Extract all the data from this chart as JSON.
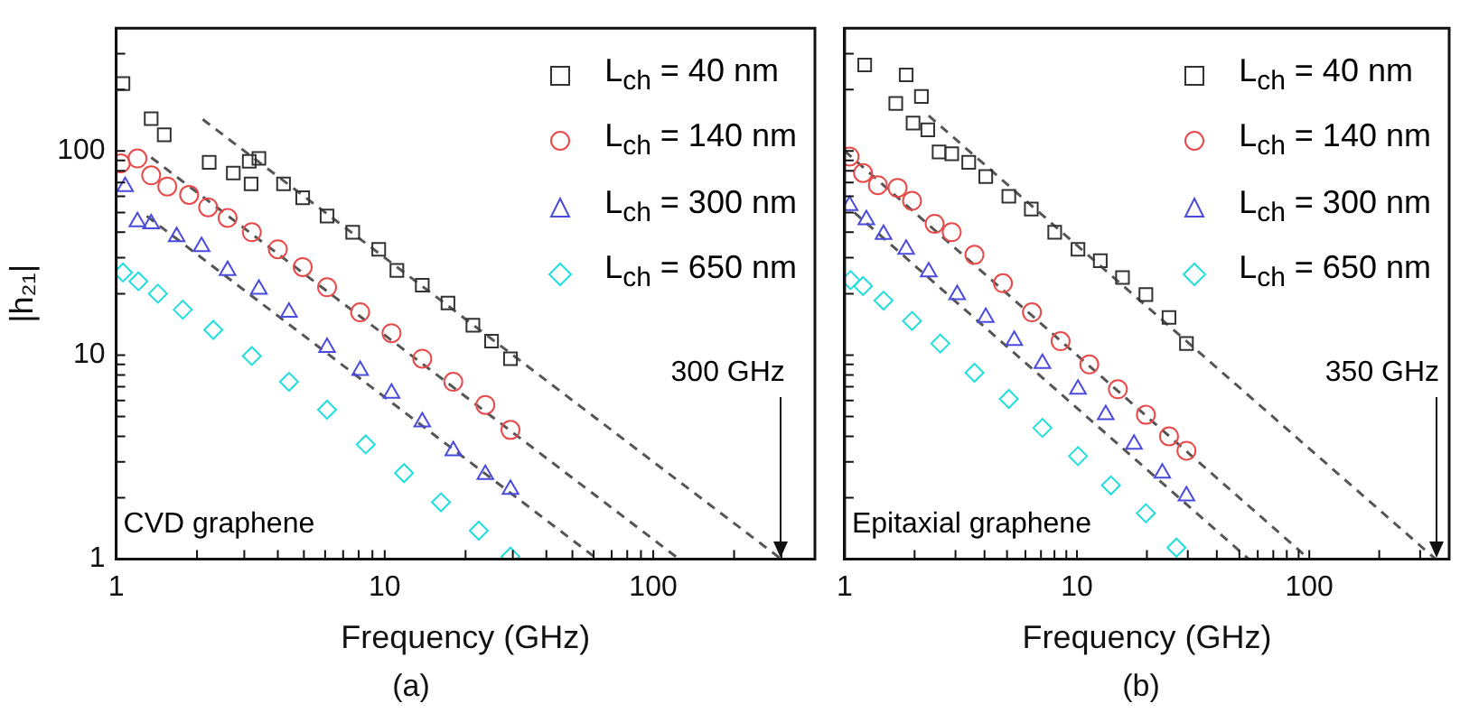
{
  "chart_data": [
    {
      "type": "scatter",
      "title": "(a)",
      "xlabel": "Frequency (GHz)",
      "ylabel": "|h₂₁|",
      "log": "xy",
      "legend": "top right",
      "grid": false,
      "xlim": [
        1,
        400
      ],
      "ylim": [
        1,
        400
      ],
      "xticks": [
        1,
        {
          "value": 2,
          "label": null
        },
        {
          "value": 3,
          "label": null
        },
        {
          "value": 4,
          "label": null
        },
        {
          "value": 5,
          "label": null
        },
        {
          "value": 6,
          "label": null
        },
        {
          "value": 7,
          "label": null
        },
        {
          "value": 8,
          "label": null
        },
        {
          "value": 9,
          "label": null
        },
        10,
        {
          "value": 20,
          "label": null
        },
        {
          "value": 30,
          "label": null
        },
        {
          "value": 40,
          "label": null
        },
        {
          "value": 50,
          "label": null
        },
        {
          "value": 60,
          "label": null
        },
        {
          "value": 70,
          "label": null
        },
        {
          "value": 80,
          "label": null
        },
        {
          "value": 90,
          "label": null
        },
        100,
        {
          "value": 200,
          "label": null
        },
        {
          "value": 300,
          "label": null
        }
      ],
      "yticks": [
        1,
        {
          "value": 2,
          "label": null
        },
        {
          "value": 3,
          "label": null
        },
        {
          "value": 4,
          "label": null
        },
        {
          "value": 5,
          "label": null
        },
        {
          "value": 6,
          "label": null
        },
        {
          "value": 7,
          "label": null
        },
        {
          "value": 8,
          "label": null
        },
        {
          "value": 9,
          "label": null
        },
        10,
        {
          "value": 20,
          "label": null
        },
        {
          "value": 30,
          "label": null
        },
        {
          "value": 40,
          "label": null
        },
        {
          "value": 50,
          "label": null
        },
        {
          "value": 60,
          "label": null
        },
        {
          "value": 70,
          "label": null
        },
        {
          "value": 80,
          "label": null
        },
        {
          "value": 90,
          "label": null
        },
        100,
        {
          "value": 200,
          "label": null
        },
        {
          "value": 300,
          "label": null
        }
      ],
      "series": [
        {
          "name": "L$_{ch}$ = 40 nm",
          "color": "#333333",
          "marker": "square",
          "x": [
            1.06,
            1.35,
            1.51,
            2.22,
            2.73,
            3.13,
            3.4,
            3.18,
            4.2,
            4.95,
            6.1,
            7.6,
            9.5,
            11.1,
            13.8,
            17.2,
            21.3,
            25,
            29.4
          ],
          "values": [
            214,
            144,
            120,
            88,
            78,
            89,
            92,
            69,
            69,
            59,
            48,
            40,
            33,
            26,
            22,
            18,
            14,
            11.7,
            9.6
          ]
        },
        {
          "name": "L$_{ch}$ = 140 nm",
          "color": "#e84a4a",
          "marker": "circle",
          "x": [
            1.04,
            1.2,
            1.35,
            1.55,
            1.87,
            2.2,
            2.6,
            3.2,
            4.0,
            4.95,
            6.1,
            8.1,
            10.6,
            13.8,
            18,
            23.7,
            29.4
          ],
          "values": [
            87,
            92,
            76,
            67,
            61,
            53,
            47,
            40,
            33,
            27,
            21.5,
            16.2,
            12.8,
            9.6,
            7.4,
            5.7,
            4.3
          ]
        },
        {
          "name": "L$_{ch}$ = 300 nm",
          "color": "#4a4adf",
          "marker": "triangle",
          "x": [
            1.08,
            1.2,
            1.35,
            1.68,
            2.08,
            2.6,
            3.4,
            4.4,
            6.1,
            8.1,
            10.6,
            13.8,
            18,
            23.7,
            29.4
          ],
          "values": [
            67,
            45,
            44,
            38,
            34,
            26,
            21,
            16.2,
            10.9,
            8.4,
            6.5,
            4.7,
            3.4,
            2.6,
            2.2
          ]
        },
        {
          "name": "L$_{ch}$ = 650 nm",
          "color": "#22dddd",
          "marker": "diamond",
          "x": [
            1.06,
            1.21,
            1.43,
            1.77,
            2.3,
            3.2,
            4.4,
            6.1,
            8.5,
            11.8,
            16.2,
            22.4,
            29.4
          ],
          "values": [
            25.4,
            23,
            20,
            16.7,
            13.3,
            9.9,
            7.4,
            5.4,
            3.65,
            2.64,
            1.9,
            1.38,
            1.03
          ]
        },
        {
          "type": "line",
          "color": "#555555",
          "marker": "none",
          "line_style": "dashed",
          "x": [
            2.1,
            300
          ],
          "values": [
            143,
            1
          ]
        },
        {
          "type": "line",
          "color": "#555555",
          "marker": "none",
          "line_style": "dashed",
          "x": [
            1.35,
            125
          ],
          "values": [
            93,
            1
          ]
        },
        {
          "type": "line",
          "color": "#555555",
          "marker": "none",
          "line_style": "dashed",
          "x": [
            1.3,
            62
          ],
          "values": [
            48,
            1
          ]
        }
      ],
      "annotations": [
        "CVD graphene",
        {
          "text": "300 GHz",
          "x": 300,
          "y": 1
        }
      ]
    },
    {
      "type": "scatter",
      "title": "(b)",
      "xlabel": "Frequency (GHz)",
      "log": "xy",
      "legend": "top right",
      "grid": false,
      "tick_labels": "x",
      "xlim": [
        1,
        400
      ],
      "ylim": [
        1,
        400
      ],
      "xticks": [
        1,
        {
          "value": 2,
          "label": null
        },
        {
          "value": 3,
          "label": null
        },
        {
          "value": 4,
          "label": null
        },
        {
          "value": 5,
          "label": null
        },
        {
          "value": 6,
          "label": null
        },
        {
          "value": 7,
          "label": null
        },
        {
          "value": 8,
          "label": null
        },
        {
          "value": 9,
          "label": null
        },
        10,
        {
          "value": 20,
          "label": null
        },
        {
          "value": 30,
          "label": null
        },
        {
          "value": 40,
          "label": null
        },
        {
          "value": 50,
          "label": null
        },
        {
          "value": 60,
          "label": null
        },
        {
          "value": 70,
          "label": null
        },
        {
          "value": 80,
          "label": null
        },
        {
          "value": 90,
          "label": null
        },
        100,
        {
          "value": 200,
          "label": null
        },
        {
          "value": 300,
          "label": null
        }
      ],
      "yticks": [
        {
          "value": 1,
          "label": null
        },
        {
          "value": 2,
          "label": null
        },
        {
          "value": 3,
          "label": null
        },
        {
          "value": 4,
          "label": null
        },
        {
          "value": 5,
          "label": null
        },
        {
          "value": 6,
          "label": null
        },
        {
          "value": 7,
          "label": null
        },
        {
          "value": 8,
          "label": null
        },
        {
          "value": 9,
          "label": null
        },
        {
          "value": 10,
          "label": null
        },
        {
          "value": 20,
          "label": null
        },
        {
          "value": 30,
          "label": null
        },
        {
          "value": 40,
          "label": null
        },
        {
          "value": 50,
          "label": null
        },
        {
          "value": 60,
          "label": null
        },
        {
          "value": 70,
          "label": null
        },
        {
          "value": 80,
          "label": null
        },
        {
          "value": 90,
          "label": null
        },
        {
          "value": 100,
          "label": null
        },
        {
          "value": 200,
          "label": null
        },
        {
          "value": 300,
          "label": null
        }
      ],
      "series": [
        {
          "name": "L$_{ch}$ = 40 nm",
          "color": "#333333",
          "marker": "square",
          "x": [
            1.22,
            1.84,
            1.66,
            2.14,
            1.97,
            2.28,
            2.55,
            2.89,
            3.42,
            4.05,
            5.09,
            6.36,
            8.02,
            10.1,
            12.6,
            15.7,
            19.8,
            24.9,
            29.6
          ],
          "values": [
            264,
            236,
            171,
            185,
            137,
            127,
            99,
            97,
            88,
            75,
            60,
            52,
            40,
            33,
            29,
            24,
            19.8,
            15.3,
            11.4
          ]
        },
        {
          "name": "L$_{ch}$ = 140 nm",
          "color": "#e84a4a",
          "marker": "circle",
          "x": [
            1.05,
            1.2,
            1.39,
            1.69,
            1.95,
            2.44,
            2.89,
            3.62,
            4.8,
            6.4,
            8.5,
            11.3,
            15,
            19.8,
            24.9,
            29.6
          ],
          "values": [
            94,
            78,
            68,
            66,
            57,
            44,
            40,
            31,
            22.5,
            16.2,
            11.7,
            9,
            6.8,
            5.1,
            4,
            3.4
          ]
        },
        {
          "name": "L$_{ch}$ = 300 nm",
          "color": "#4a4adf",
          "marker": "triangle",
          "x": [
            1.05,
            1.24,
            1.47,
            1.84,
            2.3,
            3.05,
            4.05,
            5.37,
            7.1,
            10.1,
            13.3,
            17.6,
            23.3,
            29.6
          ],
          "values": [
            54,
            46,
            39,
            33,
            25.6,
            19.8,
            15.3,
            11.8,
            9.1,
            6.8,
            5.1,
            3.66,
            2.64,
            2.04
          ]
        },
        {
          "name": "L$_{ch}$ = 650 nm",
          "color": "#22dddd",
          "marker": "diamond",
          "x": [
            1.06,
            1.2,
            1.47,
            1.95,
            2.58,
            3.62,
            5.09,
            7.1,
            10.1,
            14,
            19.8,
            26.8
          ],
          "values": [
            23.3,
            21.8,
            18.5,
            14.7,
            11.4,
            8.2,
            6.1,
            4.4,
            3.2,
            2.3,
            1.68,
            1.14
          ]
        },
        {
          "type": "line",
          "color": "#555555",
          "marker": "none",
          "line_style": "dashed",
          "x": [
            2.3,
            350
          ],
          "values": [
            149,
            1
          ]
        },
        {
          "type": "line",
          "color": "#555555",
          "marker": "none",
          "line_style": "dashed",
          "x": [
            1,
            100
          ],
          "values": [
            100,
            1
          ]
        },
        {
          "type": "line",
          "color": "#555555",
          "marker": "none",
          "line_style": "dashed",
          "x": [
            1.1,
            55
          ],
          "values": [
            50,
            1
          ]
        }
      ],
      "annotations": [
        "Epitaxial graphene",
        {
          "text": "350 GHz",
          "x": 350,
          "y": 1
        }
      ]
    }
  ]
}
